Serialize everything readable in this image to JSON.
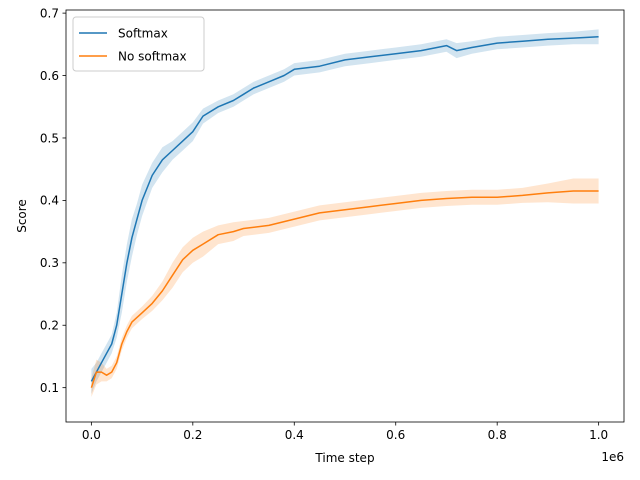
{
  "chart_data": {
    "type": "line",
    "title": "",
    "xlabel": "Time step",
    "ylabel": "Score",
    "x_scale_label": "1e6",
    "xlim": [
      -0.05,
      1.05
    ],
    "ylim": [
      0.045,
      0.705
    ],
    "x_ticks": [
      0.0,
      0.2,
      0.4,
      0.6,
      0.8,
      1.0
    ],
    "x_tick_labels": [
      "0.0",
      "0.2",
      "0.4",
      "0.6",
      "0.8",
      "1.0"
    ],
    "y_ticks": [
      0.1,
      0.2,
      0.3,
      0.4,
      0.5,
      0.6,
      0.7
    ],
    "y_tick_labels": [
      "0.1",
      "0.2",
      "0.3",
      "0.4",
      "0.5",
      "0.6",
      "0.7"
    ],
    "grid": false,
    "legend_position": "top-left",
    "series": [
      {
        "name": "Softmax",
        "color": "#1f77b4",
        "x": [
          0.0,
          0.01,
          0.02,
          0.03,
          0.04,
          0.05,
          0.06,
          0.07,
          0.08,
          0.09,
          0.1,
          0.12,
          0.14,
          0.16,
          0.18,
          0.2,
          0.22,
          0.25,
          0.28,
          0.3,
          0.32,
          0.35,
          0.38,
          0.4,
          0.45,
          0.5,
          0.55,
          0.6,
          0.65,
          0.7,
          0.72,
          0.75,
          0.8,
          0.85,
          0.9,
          0.95,
          1.0
        ],
        "y": [
          0.11,
          0.125,
          0.14,
          0.155,
          0.17,
          0.2,
          0.25,
          0.3,
          0.34,
          0.37,
          0.4,
          0.44,
          0.465,
          0.48,
          0.495,
          0.51,
          0.535,
          0.55,
          0.56,
          0.57,
          0.58,
          0.59,
          0.6,
          0.61,
          0.615,
          0.625,
          0.63,
          0.635,
          0.64,
          0.648,
          0.64,
          0.645,
          0.652,
          0.655,
          0.658,
          0.66,
          0.662
        ],
        "band": [
          0.02,
          0.015,
          0.015,
          0.015,
          0.015,
          0.02,
          0.03,
          0.03,
          0.03,
          0.025,
          0.025,
          0.02,
          0.02,
          0.015,
          0.015,
          0.015,
          0.012,
          0.01,
          0.01,
          0.01,
          0.01,
          0.01,
          0.01,
          0.01,
          0.01,
          0.01,
          0.01,
          0.01,
          0.01,
          0.01,
          0.012,
          0.01,
          0.01,
          0.01,
          0.01,
          0.01,
          0.012
        ]
      },
      {
        "name": "No softmax",
        "color": "#ff7f0e",
        "x": [
          0.0,
          0.01,
          0.02,
          0.03,
          0.04,
          0.05,
          0.06,
          0.07,
          0.08,
          0.1,
          0.12,
          0.14,
          0.16,
          0.18,
          0.2,
          0.22,
          0.25,
          0.28,
          0.3,
          0.35,
          0.4,
          0.45,
          0.5,
          0.55,
          0.6,
          0.65,
          0.7,
          0.75,
          0.8,
          0.85,
          0.9,
          0.95,
          1.0
        ],
        "y": [
          0.1,
          0.125,
          0.125,
          0.12,
          0.125,
          0.14,
          0.17,
          0.19,
          0.205,
          0.22,
          0.235,
          0.255,
          0.28,
          0.305,
          0.32,
          0.33,
          0.345,
          0.35,
          0.355,
          0.36,
          0.37,
          0.38,
          0.385,
          0.39,
          0.395,
          0.4,
          0.403,
          0.405,
          0.405,
          0.408,
          0.412,
          0.415,
          0.415
        ],
        "band": [
          0.015,
          0.02,
          0.015,
          0.01,
          0.01,
          0.01,
          0.01,
          0.01,
          0.01,
          0.01,
          0.012,
          0.015,
          0.02,
          0.02,
          0.02,
          0.02,
          0.015,
          0.015,
          0.012,
          0.012,
          0.012,
          0.012,
          0.012,
          0.012,
          0.012,
          0.012,
          0.012,
          0.012,
          0.012,
          0.012,
          0.015,
          0.02,
          0.02
        ]
      }
    ]
  }
}
